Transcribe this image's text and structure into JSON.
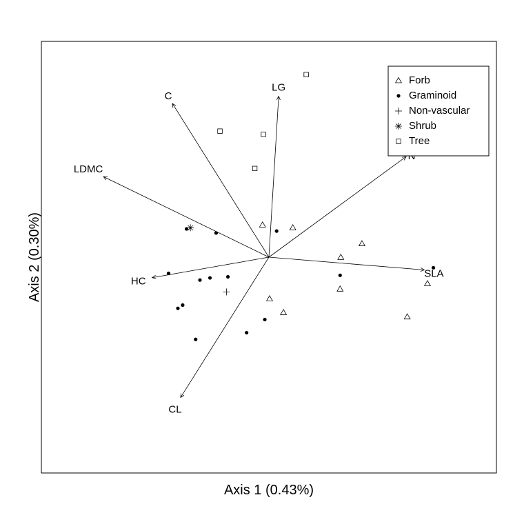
{
  "chart_data": {
    "type": "scatter",
    "title": "",
    "xlabel": "Axis 1 (0.43%)",
    "ylabel": "Axis 2 (0.30%)",
    "xlim": [
      -1.0,
      1.0
    ],
    "ylim": [
      -1.0,
      1.0
    ],
    "grid": false,
    "legend_position": "top-right",
    "origin": [
      0.0,
      0.0
    ],
    "vectors": [
      {
        "name": "C",
        "x": -0.424,
        "y": 0.712
      },
      {
        "name": "LG",
        "x": 0.043,
        "y": 0.746
      },
      {
        "name": "N",
        "x": 0.603,
        "y": 0.466
      },
      {
        "name": "LDMC",
        "x": -0.727,
        "y": 0.373
      },
      {
        "name": "SLA",
        "x": 0.683,
        "y": -0.059
      },
      {
        "name": "HC",
        "x": -0.513,
        "y": -0.095
      },
      {
        "name": "CL",
        "x": -0.388,
        "y": -0.65
      }
    ],
    "series": [
      {
        "name": "Forb",
        "marker": "triangle",
        "points": [
          {
            "x": -0.028,
            "y": 0.149
          },
          {
            "x": 0.105,
            "y": 0.136
          },
          {
            "x": 0.409,
            "y": 0.062
          },
          {
            "x": 0.316,
            "y": -0.001
          },
          {
            "x": 0.313,
            "y": -0.148
          },
          {
            "x": 0.003,
            "y": -0.193
          },
          {
            "x": 0.064,
            "y": -0.257
          },
          {
            "x": 0.697,
            "y": -0.123
          },
          {
            "x": 0.608,
            "y": -0.277
          }
        ]
      },
      {
        "name": "Graminoid",
        "marker": "dot",
        "points": [
          {
            "x": -0.362,
            "y": 0.131
          },
          {
            "x": -0.232,
            "y": 0.112
          },
          {
            "x": 0.034,
            "y": 0.121
          },
          {
            "x": -0.441,
            "y": -0.075
          },
          {
            "x": -0.303,
            "y": -0.106
          },
          {
            "x": -0.259,
            "y": -0.096
          },
          {
            "x": -0.18,
            "y": -0.091
          },
          {
            "x": 0.313,
            "y": -0.084
          },
          {
            "x": 0.723,
            "y": -0.049
          },
          {
            "x": -0.379,
            "y": -0.222
          },
          {
            "x": -0.4,
            "y": -0.237
          },
          {
            "x": -0.018,
            "y": -0.289
          },
          {
            "x": -0.098,
            "y": -0.35
          },
          {
            "x": -0.322,
            "y": -0.381
          }
        ]
      },
      {
        "name": "Non-vascular",
        "marker": "plus",
        "points": [
          {
            "x": -0.186,
            "y": -0.161
          }
        ]
      },
      {
        "name": "Shrub",
        "marker": "asterisk",
        "points": [
          {
            "x": -0.345,
            "y": 0.136
          }
        ]
      },
      {
        "name": "Tree",
        "marker": "square",
        "points": [
          {
            "x": 0.164,
            "y": 0.846
          },
          {
            "x": -0.215,
            "y": 0.584
          },
          {
            "x": -0.024,
            "y": 0.569
          },
          {
            "x": -0.062,
            "y": 0.411
          }
        ]
      }
    ]
  }
}
